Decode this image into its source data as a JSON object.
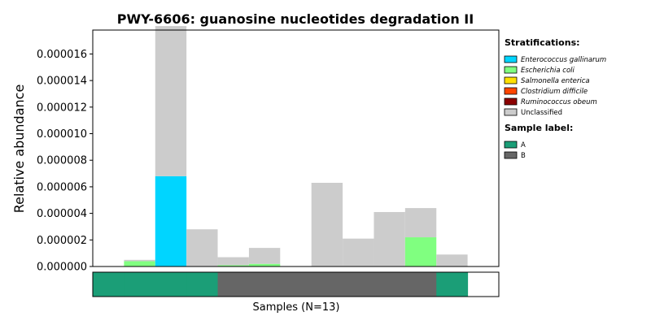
{
  "chart_data": {
    "type": "bar",
    "stacked": true,
    "title": "PWY-6606: guanosine nucleotides degradation II",
    "ylabel": "Relative abundance",
    "xlabel": "Samples (N=13)",
    "ylim": [
      0,
      1.78e-05
    ],
    "yticks": [
      "0.000000",
      "0.000002",
      "0.000004",
      "0.000006",
      "0.000008",
      "0.000010",
      "0.000012",
      "0.000014",
      "0.000016"
    ],
    "sample_count": 13,
    "series": [
      {
        "name": "Enterococcus gallinarum",
        "color": "#00d5ff",
        "italic": true,
        "values": [
          0,
          0,
          6.8e-06,
          0,
          0,
          0,
          0,
          0,
          0,
          0,
          0,
          0,
          0
        ]
      },
      {
        "name": "Escherichia coli",
        "color": "#80ff80",
        "italic": true,
        "values": [
          0,
          4e-07,
          0,
          0,
          1e-07,
          2e-07,
          0,
          0,
          0,
          0,
          2.2e-06,
          0,
          0
        ]
      },
      {
        "name": "Salmonella enterica",
        "color": "#ffe000",
        "italic": true,
        "values": [
          0,
          0,
          0,
          0,
          0,
          0,
          0,
          0,
          0,
          0,
          0,
          0,
          0
        ]
      },
      {
        "name": "Clostridium difficile",
        "color": "#ff4500",
        "italic": true,
        "values": [
          0,
          0,
          0,
          0,
          0,
          0,
          0,
          0,
          0,
          0,
          0,
          0,
          0
        ]
      },
      {
        "name": "Ruminococcus obeum",
        "color": "#8b0000",
        "italic": true,
        "values": [
          0,
          0,
          0,
          0,
          0,
          0,
          0,
          0,
          0,
          0,
          0,
          0,
          0
        ]
      },
      {
        "name": "Unclassified",
        "color": "#cccccc",
        "italic": false,
        "values": [
          0,
          1e-07,
          1.13e-05,
          2.8e-06,
          6e-07,
          1.2e-06,
          0,
          6.3e-06,
          2.1e-06,
          4.1e-06,
          2.2e-06,
          9e-07,
          0
        ]
      }
    ],
    "legend": {
      "placement": "right",
      "stratifications_title": "Stratifications:",
      "sample_label_title": "Sample label:"
    },
    "sample_labels": {
      "values": [
        "A",
        "A",
        "A",
        "A",
        "B",
        "B",
        "B",
        "B",
        "B",
        "B",
        "B",
        "A",
        "A"
      ],
      "categories": [
        {
          "name": "A",
          "color": "#1b9e77"
        },
        {
          "name": "B",
          "color": "#666666"
        }
      ]
    }
  }
}
